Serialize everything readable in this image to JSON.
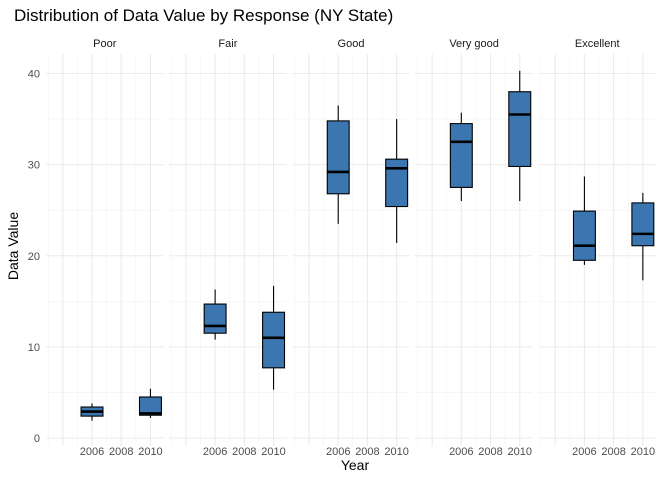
{
  "chart_data": {
    "type": "boxplot",
    "title": "Distribution of Data Value by Response (NY State)",
    "xlabel": "Year",
    "ylabel": "Data Value",
    "ylim": [
      0,
      42
    ],
    "y_ticks": [
      0,
      10,
      20,
      30,
      40
    ],
    "x_years": [
      2006,
      2008,
      2010
    ],
    "x_tick_labels": [
      "2006",
      "2008",
      "2010"
    ],
    "grid": true,
    "legend": "none",
    "box_color": "#3b76b0",
    "facets": [
      {
        "name": "Poor",
        "boxes": [
          {
            "year": 2006,
            "min": 1.9,
            "q1": 2.4,
            "median": 2.9,
            "q3": 3.4,
            "max": 3.8
          },
          {
            "year": 2010,
            "min": 2.2,
            "q1": 2.5,
            "median": 2.7,
            "q3": 4.5,
            "max": 5.4
          }
        ]
      },
      {
        "name": "Fair",
        "boxes": [
          {
            "year": 2006,
            "min": 10.8,
            "q1": 11.5,
            "median": 12.3,
            "q3": 14.7,
            "max": 16.3
          },
          {
            "year": 2010,
            "min": 5.3,
            "q1": 7.7,
            "median": 11.0,
            "q3": 13.8,
            "max": 16.7
          }
        ]
      },
      {
        "name": "Good",
        "boxes": [
          {
            "year": 2006,
            "min": 23.5,
            "q1": 26.8,
            "median": 29.2,
            "q3": 34.8,
            "max": 36.5
          },
          {
            "year": 2010,
            "min": 21.4,
            "q1": 25.4,
            "median": 29.6,
            "q3": 30.6,
            "max": 35.0
          }
        ]
      },
      {
        "name": "Very good",
        "boxes": [
          {
            "year": 2006,
            "min": 26.0,
            "q1": 27.5,
            "median": 32.5,
            "q3": 34.5,
            "max": 35.7
          },
          {
            "year": 2010,
            "min": 26.0,
            "q1": 29.8,
            "median": 35.5,
            "q3": 38.0,
            "max": 40.3
          }
        ]
      },
      {
        "name": "Excellent",
        "boxes": [
          {
            "year": 2006,
            "min": 19.0,
            "q1": 19.5,
            "median": 21.1,
            "q3": 24.9,
            "max": 28.7
          },
          {
            "year": 2010,
            "min": 17.3,
            "q1": 21.1,
            "median": 22.4,
            "q3": 25.8,
            "max": 26.9
          }
        ]
      }
    ]
  }
}
